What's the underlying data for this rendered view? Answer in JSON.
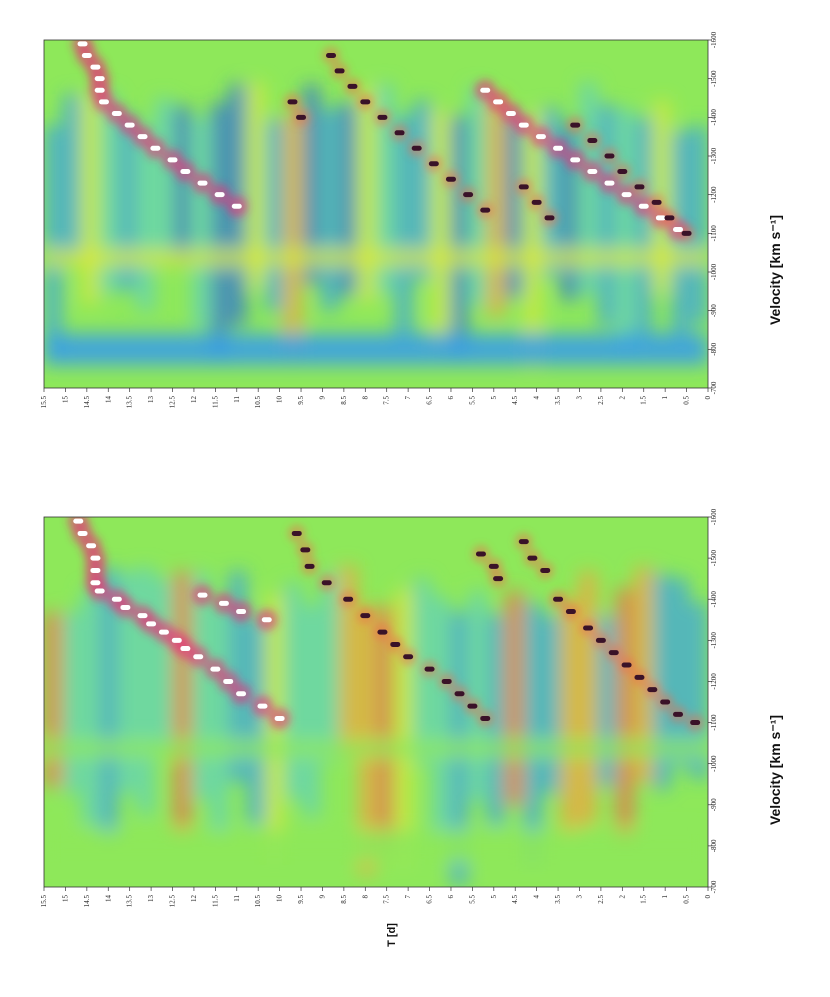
{
  "chart_data": [
    {
      "type": "heatmap",
      "title": "",
      "xlabel": "Velocity [km s⁻¹]",
      "ylabel": "",
      "xlim": [
        -1600,
        -700
      ],
      "ylim": [
        0,
        15.5
      ],
      "x_ticks": [
        "-1600",
        "-1500",
        "-1400",
        "-1300",
        "-1200",
        "-1100",
        "-1000",
        "-900",
        "-800",
        "-700"
      ],
      "y_ticks": [
        "0",
        "0.5",
        "1",
        "1.5",
        "2",
        "2.5",
        "3",
        "3.5",
        "4",
        "4.5",
        "5",
        "5.5",
        "6",
        "6.5",
        "7",
        "7.5",
        "8",
        "8.5",
        "9",
        "9.5",
        "10",
        "10.5",
        "11",
        "11.5",
        "12",
        "12.5",
        "13",
        "13.5",
        "14",
        "14.5",
        "15",
        "15.5"
      ],
      "colormap": [
        "#2f6fd8",
        "#3aa0e6",
        "#5fd0c0",
        "#8ee85a",
        "#d9e83a",
        "#f5a23c",
        "#f06a4a",
        "#e8307a"
      ],
      "white_track": [
        [
          -1590,
          14.7
        ],
        [
          -1560,
          14.6
        ],
        [
          -1530,
          14.4
        ],
        [
          -1500,
          14.3
        ],
        [
          -1470,
          14.3
        ],
        [
          -1440,
          14.3
        ],
        [
          -1420,
          14.2
        ],
        [
          -1400,
          13.8
        ],
        [
          -1380,
          13.6
        ],
        [
          -1360,
          13.2
        ],
        [
          -1340,
          13.0
        ],
        [
          -1320,
          12.7
        ],
        [
          -1300,
          12.4
        ],
        [
          -1280,
          12.2
        ],
        [
          -1260,
          11.9
        ],
        [
          -1230,
          11.5
        ],
        [
          -1200,
          11.2
        ],
        [
          -1170,
          10.9
        ],
        [
          -1140,
          10.4
        ],
        [
          -1110,
          10.0
        ],
        [
          -1410,
          11.8
        ],
        [
          -1390,
          11.3
        ],
        [
          -1370,
          10.9
        ],
        [
          -1350,
          10.3
        ]
      ],
      "dark_track": [
        [
          -1560,
          9.6
        ],
        [
          -1520,
          9.4
        ],
        [
          -1480,
          9.3
        ],
        [
          -1440,
          8.9
        ],
        [
          -1400,
          8.4
        ],
        [
          -1360,
          8.0
        ],
        [
          -1320,
          7.6
        ],
        [
          -1290,
          7.3
        ],
        [
          -1260,
          7.0
        ],
        [
          -1230,
          6.5
        ],
        [
          -1200,
          6.1
        ],
        [
          -1170,
          5.8
        ],
        [
          -1140,
          5.5
        ],
        [
          -1110,
          5.2
        ],
        [
          -1510,
          5.3
        ],
        [
          -1480,
          5.0
        ],
        [
          -1450,
          4.9
        ],
        [
          -1540,
          4.3
        ],
        [
          -1500,
          4.1
        ],
        [
          -1470,
          3.8
        ],
        [
          -1400,
          3.5
        ],
        [
          -1370,
          3.2
        ],
        [
          -1330,
          2.8
        ],
        [
          -1300,
          2.5
        ],
        [
          -1270,
          2.2
        ],
        [
          -1240,
          1.9
        ],
        [
          -1210,
          1.6
        ],
        [
          -1180,
          1.3
        ],
        [
          -1150,
          1.0
        ],
        [
          -1120,
          0.7
        ],
        [
          -1100,
          0.3
        ]
      ]
    },
    {
      "type": "heatmap",
      "title": "",
      "xlabel": "Velocity [km s⁻¹]",
      "ylabel": "",
      "xlim": [
        -1600,
        -700
      ],
      "ylim": [
        0,
        15.5
      ],
      "x_ticks": [
        "-1600",
        "-1500",
        "-1400",
        "-1300",
        "-1200",
        "-1100",
        "-1000",
        "-900",
        "-800",
        "-700"
      ],
      "y_ticks": [
        "0",
        "0.5",
        "1",
        "1.5",
        "2",
        "2.5",
        "3",
        "3.5",
        "4",
        "4.5",
        "5",
        "5.5",
        "6",
        "6.5",
        "7",
        "7.5",
        "8",
        "8.5",
        "9",
        "9.5",
        "10",
        "10.5",
        "11",
        "11.5",
        "12",
        "12.5",
        "13",
        "13.5",
        "14",
        "14.5",
        "15",
        "15.5"
      ],
      "colormap": [
        "#2f6fd8",
        "#3aa0e6",
        "#5fd0c0",
        "#8ee85a",
        "#d9e83a",
        "#f5a23c",
        "#f06a4a",
        "#e8307a"
      ],
      "white_track": [
        [
          -1590,
          14.6
        ],
        [
          -1560,
          14.5
        ],
        [
          -1530,
          14.3
        ],
        [
          -1500,
          14.2
        ],
        [
          -1470,
          14.2
        ],
        [
          -1440,
          14.1
        ],
        [
          -1410,
          13.8
        ],
        [
          -1380,
          13.5
        ],
        [
          -1350,
          13.2
        ],
        [
          -1320,
          12.9
        ],
        [
          -1290,
          12.5
        ],
        [
          -1260,
          12.2
        ],
        [
          -1230,
          11.8
        ],
        [
          -1200,
          11.4
        ],
        [
          -1170,
          11.0
        ],
        [
          -1470,
          5.2
        ],
        [
          -1440,
          4.9
        ],
        [
          -1410,
          4.6
        ],
        [
          -1380,
          4.3
        ],
        [
          -1350,
          3.9
        ],
        [
          -1320,
          3.5
        ],
        [
          -1290,
          3.1
        ],
        [
          -1260,
          2.7
        ],
        [
          -1230,
          2.3
        ],
        [
          -1200,
          1.9
        ],
        [
          -1170,
          1.5
        ],
        [
          -1140,
          1.1
        ],
        [
          -1110,
          0.7
        ]
      ],
      "dark_track": [
        [
          -1440,
          9.7
        ],
        [
          -1400,
          9.5
        ],
        [
          -1560,
          8.8
        ],
        [
          -1520,
          8.6
        ],
        [
          -1480,
          8.3
        ],
        [
          -1440,
          8.0
        ],
        [
          -1400,
          7.6
        ],
        [
          -1360,
          7.2
        ],
        [
          -1320,
          6.8
        ],
        [
          -1280,
          6.4
        ],
        [
          -1240,
          6.0
        ],
        [
          -1200,
          5.6
        ],
        [
          -1160,
          5.2
        ],
        [
          -1220,
          4.3
        ],
        [
          -1180,
          4.0
        ],
        [
          -1140,
          3.7
        ],
        [
          -1380,
          3.1
        ],
        [
          -1340,
          2.7
        ],
        [
          -1300,
          2.3
        ],
        [
          -1260,
          2.0
        ],
        [
          -1220,
          1.6
        ],
        [
          -1180,
          1.2
        ],
        [
          -1140,
          0.9
        ],
        [
          -1100,
          0.5
        ]
      ]
    }
  ],
  "shared_ylabel": "T [d]"
}
